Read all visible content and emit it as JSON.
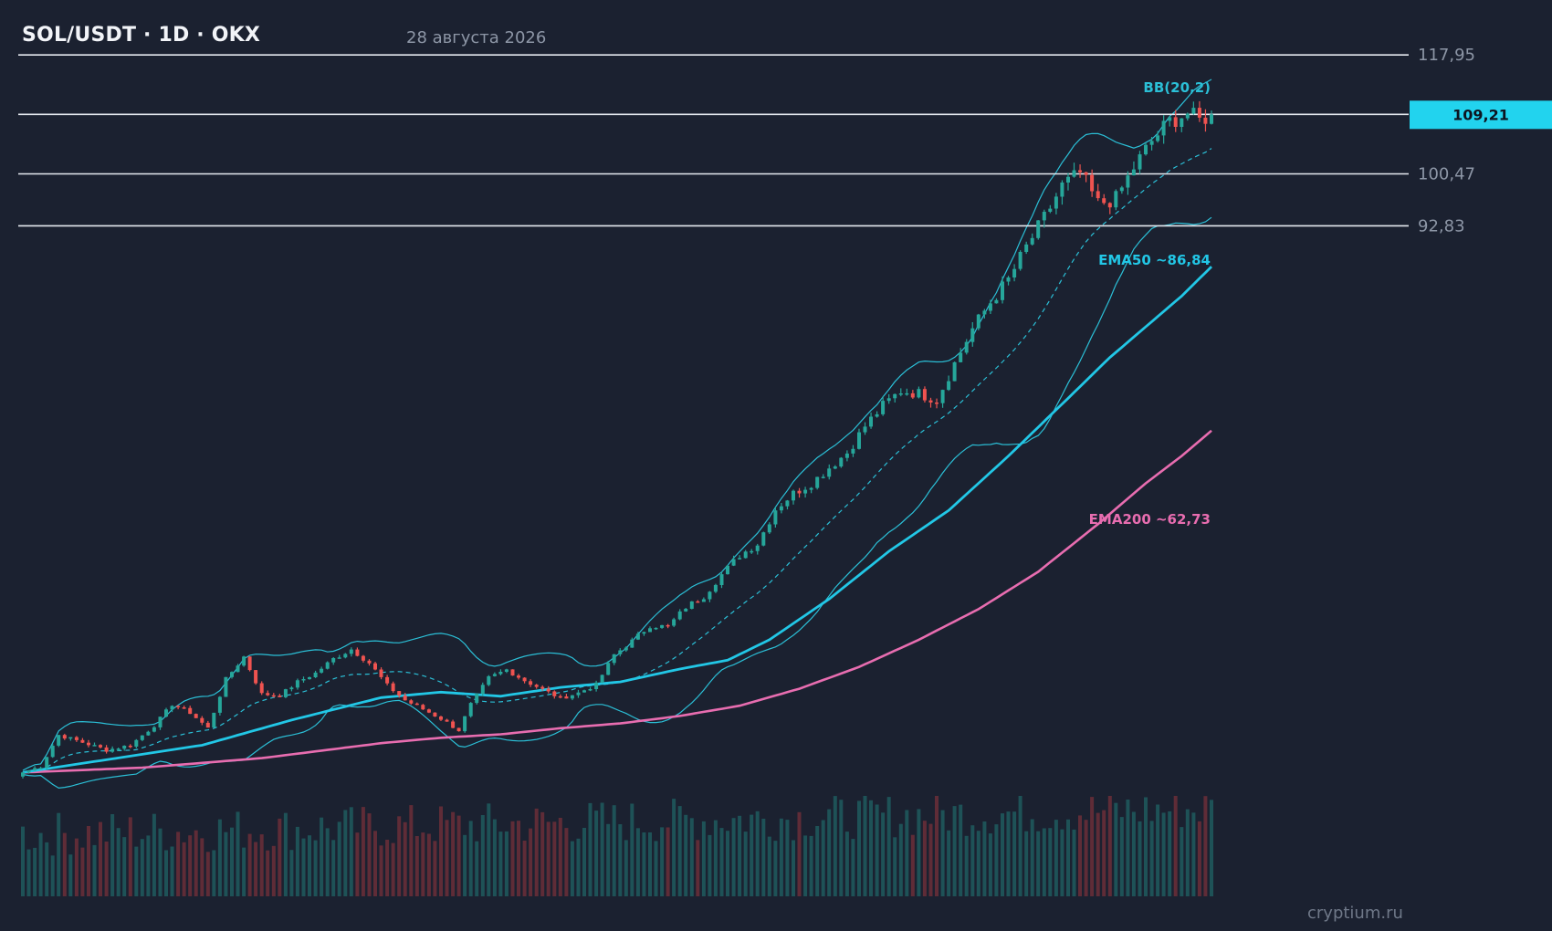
{
  "header": {
    "title": "SOL/USDT · 1D · OKX",
    "date": "28 августа 2026"
  },
  "watermark": "cryptium.ru",
  "colors": {
    "background": "#1b2130",
    "up": "#26a69a",
    "down": "#ef5350",
    "ema50": "#22c7e6",
    "ema200": "#e86db0",
    "bollinger": "#2bbfd6",
    "level_line": "#e6e9ef",
    "price_tag_bg": "#22d3ee"
  },
  "chart_data": {
    "type": "candlestick",
    "symbol": "SOL/USDT",
    "timeframe": "1D",
    "exchange": "OKX",
    "ylim": [
      12,
      122
    ],
    "current_price": "109,21",
    "current_price_value": 109.21,
    "levels": [
      {
        "label": "117,95",
        "value": 117.95
      },
      {
        "label": "100,47",
        "value": 100.47
      },
      {
        "label": "92,83",
        "value": 92.83
      }
    ],
    "annotations": {
      "bollinger": "BB(20,2)",
      "ema50": "EMA50 ~86,84",
      "ema200": "EMA200 ~62,73"
    },
    "ema50_last": 86.84,
    "ema200_last": 62.73,
    "close_path": [
      [
        0,
        12.5
      ],
      [
        3,
        13.4
      ],
      [
        6,
        18.0
      ],
      [
        9,
        17.2
      ],
      [
        14,
        15.8
      ],
      [
        18,
        16.5
      ],
      [
        22,
        19.4
      ],
      [
        25,
        22.5
      ],
      [
        28,
        21.3
      ],
      [
        31,
        19.0
      ],
      [
        34,
        26.2
      ],
      [
        37,
        29.5
      ],
      [
        40,
        24.0
      ],
      [
        43,
        23.8
      ],
      [
        46,
        25.8
      ],
      [
        49,
        27.1
      ],
      [
        52,
        29.2
      ],
      [
        55,
        30.6
      ],
      [
        58,
        28.6
      ],
      [
        61,
        25.3
      ],
      [
        64,
        23.1
      ],
      [
        67,
        21.8
      ],
      [
        70,
        20.4
      ],
      [
        73,
        18.7
      ],
      [
        75,
        22.5
      ],
      [
        78,
        26.4
      ],
      [
        81,
        27.6
      ],
      [
        84,
        26.0
      ],
      [
        87,
        24.7
      ],
      [
        90,
        23.4
      ],
      [
        93,
        24.2
      ],
      [
        96,
        25.4
      ],
      [
        99,
        29.8
      ],
      [
        102,
        31.8
      ],
      [
        105,
        34.1
      ],
      [
        108,
        33.9
      ],
      [
        111,
        36.8
      ],
      [
        114,
        38.4
      ],
      [
        117,
        41.6
      ],
      [
        120,
        44.4
      ],
      [
        123,
        46.1
      ],
      [
        126,
        51.2
      ],
      [
        129,
        53.5
      ],
      [
        132,
        55.0
      ],
      [
        135,
        57.3
      ],
      [
        138,
        59.5
      ],
      [
        141,
        63.4
      ],
      [
        144,
        66.4
      ],
      [
        147,
        68.6
      ],
      [
        150,
        68.2
      ],
      [
        153,
        67.3
      ],
      [
        156,
        72.6
      ],
      [
        159,
        77.7
      ],
      [
        162,
        81.6
      ],
      [
        165,
        84.9
      ],
      [
        168,
        89.7
      ],
      [
        171,
        94.0
      ],
      [
        174,
        98.7
      ],
      [
        177,
        100.6
      ],
      [
        180,
        96.1
      ],
      [
        183,
        96.8
      ],
      [
        186,
        101.4
      ],
      [
        189,
        105.3
      ],
      [
        192,
        108.2
      ],
      [
        195,
        109.4
      ],
      [
        197,
        108.3
      ],
      [
        199,
        109.21
      ]
    ],
    "ema50_path": [
      [
        0,
        12.5
      ],
      [
        15,
        14.5
      ],
      [
        30,
        16.5
      ],
      [
        45,
        20.2
      ],
      [
        60,
        23.5
      ],
      [
        70,
        24.3
      ],
      [
        80,
        23.7
      ],
      [
        90,
        25.0
      ],
      [
        100,
        25.8
      ],
      [
        110,
        27.7
      ],
      [
        118,
        29.0
      ],
      [
        125,
        32.0
      ],
      [
        135,
        38.0
      ],
      [
        145,
        45.0
      ],
      [
        155,
        51.0
      ],
      [
        165,
        59.0
      ],
      [
        175,
        67.5
      ],
      [
        182,
        73.5
      ],
      [
        188,
        78.0
      ],
      [
        194,
        82.5
      ],
      [
        199,
        86.84
      ]
    ],
    "ema200_path": [
      [
        0,
        12.5
      ],
      [
        20,
        13.2
      ],
      [
        40,
        14.6
      ],
      [
        60,
        16.8
      ],
      [
        70,
        17.6
      ],
      [
        80,
        18.1
      ],
      [
        90,
        19.0
      ],
      [
        100,
        19.7
      ],
      [
        110,
        20.8
      ],
      [
        120,
        22.3
      ],
      [
        130,
        24.8
      ],
      [
        140,
        28.0
      ],
      [
        150,
        32.0
      ],
      [
        160,
        36.5
      ],
      [
        170,
        42.0
      ],
      [
        180,
        49.0
      ],
      [
        188,
        55.0
      ],
      [
        194,
        59.0
      ],
      [
        199,
        62.73
      ]
    ],
    "volume_range": [
      0,
      100
    ],
    "volume_seed": 7
  }
}
